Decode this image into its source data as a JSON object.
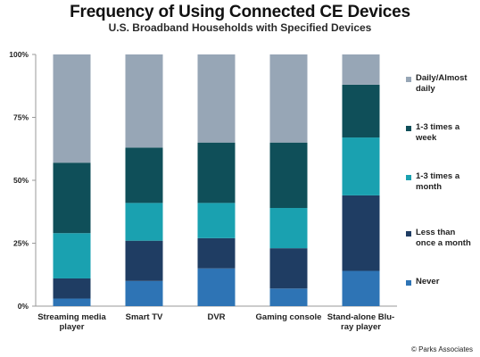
{
  "chart_data": {
    "type": "bar",
    "stacked": true,
    "title": "Frequency of Using Connected CE Devices",
    "subtitle": "U.S. Broadband Households with Specified Devices",
    "categories": [
      "Streaming media player",
      "Smart TV",
      "DVR",
      "Gaming console",
      "Stand-alone Blu-ray player"
    ],
    "category_lines": [
      [
        "Streaming media",
        "player"
      ],
      [
        "Smart TV"
      ],
      [
        "DVR"
      ],
      [
        "Gaming console"
      ],
      [
        "Stand-alone Blu-",
        "ray player"
      ]
    ],
    "ylim": [
      0,
      100
    ],
    "yticks": [
      0,
      25,
      50,
      75,
      100
    ],
    "ytick_labels": [
      "0%",
      "25%",
      "50%",
      "75%",
      "100%"
    ],
    "series": [
      {
        "name": "Never",
        "name_lines": [
          "Never"
        ],
        "color": "#2e74b5",
        "values": [
          3,
          10,
          15,
          7,
          14
        ]
      },
      {
        "name": "Less than once a month",
        "name_lines": [
          "Less than",
          "once a month"
        ],
        "color": "#1f3d63",
        "values": [
          8,
          16,
          12,
          16,
          30
        ]
      },
      {
        "name": "1-3 times a month",
        "name_lines": [
          "1-3 times a",
          "month"
        ],
        "color": "#1aa1b0",
        "values": [
          18,
          15,
          14,
          16,
          23
        ]
      },
      {
        "name": "1-3 times a week",
        "name_lines": [
          "1-3 times a",
          "week"
        ],
        "color": "#0f4f59",
        "values": [
          28,
          22,
          24,
          26,
          21
        ]
      },
      {
        "name": "Daily/Almost daily",
        "name_lines": [
          "Daily/Almost",
          "daily"
        ],
        "color": "#97a6b6",
        "values": [
          43,
          37,
          35,
          35,
          12
        ]
      }
    ],
    "legend_position": "right",
    "grid": false
  },
  "credit": "© Parks Associates"
}
